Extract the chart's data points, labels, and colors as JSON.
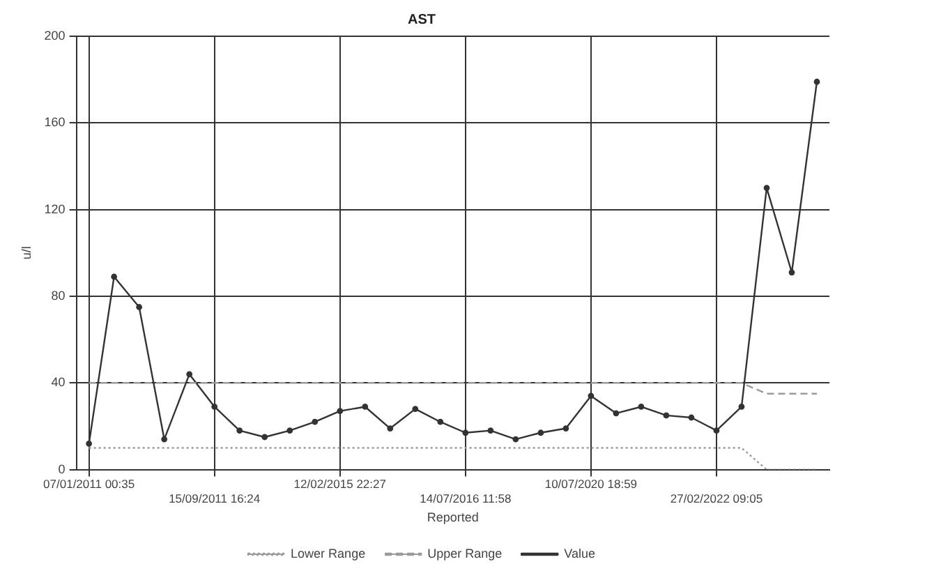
{
  "chart_data": {
    "type": "line",
    "title": "AST",
    "xlabel": "Reported",
    "ylabel": "u/l",
    "categories": [
      "07/01/2011 00:35",
      null,
      null,
      null,
      null,
      "15/09/2011 16:24",
      null,
      null,
      null,
      null,
      "12/02/2015 22:27",
      null,
      null,
      null,
      null,
      "14/07/2016 11:58",
      null,
      null,
      null,
      null,
      "10/07/2020 18:59",
      null,
      null,
      null,
      null,
      "27/02/2022 09:05",
      null,
      null,
      null,
      null
    ],
    "series": [
      {
        "name": "Lower Range",
        "color": "#9a9a9a",
        "line_style": "dotted",
        "marker": "none",
        "values": [
          10,
          10,
          10,
          10,
          10,
          10,
          10,
          10,
          10,
          10,
          10,
          10,
          10,
          10,
          10,
          10,
          10,
          10,
          10,
          10,
          10,
          10,
          10,
          10,
          10,
          10,
          10,
          0,
          0,
          0
        ]
      },
      {
        "name": "Upper Range",
        "color": "#9a9a9a",
        "line_style": "dashed",
        "marker": "none",
        "values": [
          40,
          40,
          40,
          40,
          40,
          40,
          40,
          40,
          40,
          40,
          40,
          40,
          40,
          40,
          40,
          40,
          40,
          40,
          40,
          40,
          40,
          40,
          40,
          40,
          40,
          40,
          40,
          35,
          35,
          35
        ]
      },
      {
        "name": "Value",
        "color": "#333333",
        "line_style": "solid",
        "marker": "circle",
        "values": [
          12,
          89,
          75,
          14,
          44,
          29,
          18,
          15,
          18,
          22,
          27,
          29,
          19,
          28,
          22,
          17,
          18,
          14,
          17,
          19,
          34,
          26,
          29,
          25,
          24,
          18,
          29,
          130,
          91,
          179
        ]
      }
    ],
    "ylim": [
      0,
      200
    ],
    "yticks": [
      0,
      40,
      80,
      120,
      160,
      200
    ],
    "grid": true,
    "legend": "bottom"
  }
}
